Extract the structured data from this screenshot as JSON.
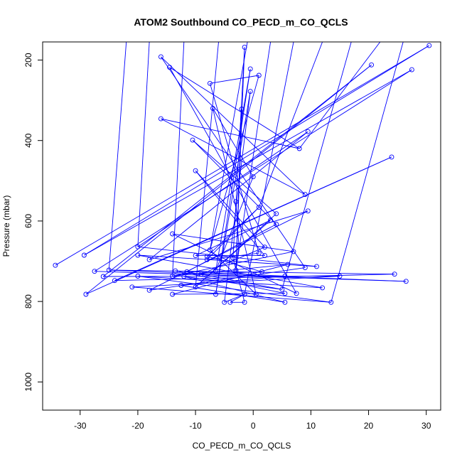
{
  "chart_data": {
    "type": "line",
    "title": "ATOM2 Southbound CO_PECD_m_CO_QCLS",
    "xlabel": "CO_PECD_m_CO_QCLS",
    "ylabel": "Pressure (mbar)",
    "xlim": [
      -36.5,
      32.5
    ],
    "ylim": [
      1070,
      155
    ],
    "y_reversed": true,
    "xticks": [
      -30,
      -20,
      -10,
      0,
      10,
      20,
      30
    ],
    "yticks": [
      200,
      400,
      600,
      800,
      1000
    ],
    "grid": false,
    "series": [
      {
        "color": "#0000ff",
        "marker": "open-circle",
        "points": [
          [
            -34.3,
            710
          ],
          [
            -29.3,
            685
          ],
          [
            -27.5,
            725
          ],
          [
            -25,
            722
          ],
          [
            -24,
            748
          ],
          [
            -29,
            782
          ],
          [
            -26,
            738
          ],
          [
            -21,
            764
          ],
          [
            -20,
            737
          ],
          [
            -20,
            685
          ],
          [
            -20,
            664
          ],
          [
            -18,
            696
          ],
          [
            -18,
            772
          ],
          [
            -16,
            192
          ],
          [
            -16,
            346
          ],
          [
            -14.5,
            218
          ],
          [
            -14,
            632
          ],
          [
            -14,
            737
          ],
          [
            -14,
            782
          ],
          [
            -13.5,
            724
          ],
          [
            -12.5,
            760
          ],
          [
            -12,
            738
          ],
          [
            -11.5,
            726
          ],
          [
            -10.5,
            399
          ],
          [
            -10,
            764
          ],
          [
            -10,
            686
          ],
          [
            -10,
            475
          ],
          [
            -9,
            732
          ],
          [
            -8,
            688
          ],
          [
            -8,
            696
          ],
          [
            -7.5,
            258
          ],
          [
            -7.5,
            672
          ],
          [
            -7,
            320
          ],
          [
            -6.5,
            724
          ],
          [
            -6.5,
            782
          ],
          [
            -5,
            802
          ],
          [
            -4,
            802
          ],
          [
            -3.5,
            692
          ],
          [
            -3,
            722
          ],
          [
            -3,
            726
          ],
          [
            -3,
            552
          ],
          [
            -2.5,
            660
          ],
          [
            -2,
            322
          ],
          [
            -1.5,
            168
          ],
          [
            -1.5,
            802
          ],
          [
            -1.5,
            782
          ],
          [
            -0.5,
            278
          ],
          [
            -0.5,
            222
          ],
          [
            0,
            490
          ],
          [
            0.5,
            782
          ],
          [
            1,
            238
          ],
          [
            1,
            680
          ],
          [
            1,
            566
          ],
          [
            1.5,
            726
          ],
          [
            2,
            665
          ],
          [
            2,
            686
          ],
          [
            3,
            598
          ],
          [
            4,
            582
          ],
          [
            4,
            608
          ],
          [
            5,
            770
          ],
          [
            5.5,
            802
          ],
          [
            5.5,
            737
          ],
          [
            5.5,
            780
          ],
          [
            6,
            708
          ],
          [
            7,
            676
          ],
          [
            7.5,
            780
          ],
          [
            8,
            420
          ],
          [
            9,
            534
          ],
          [
            9,
            716
          ],
          [
            9.5,
            575
          ],
          [
            9.5,
            378
          ],
          [
            11,
            713
          ],
          [
            12,
            766
          ],
          [
            13.5,
            802
          ],
          [
            15,
            737
          ],
          [
            20.5,
            212
          ],
          [
            24,
            441
          ],
          [
            24.5,
            732
          ],
          [
            26.5,
            750
          ],
          [
            27.5,
            224
          ],
          [
            30.5,
            164
          ]
        ]
      }
    ]
  }
}
